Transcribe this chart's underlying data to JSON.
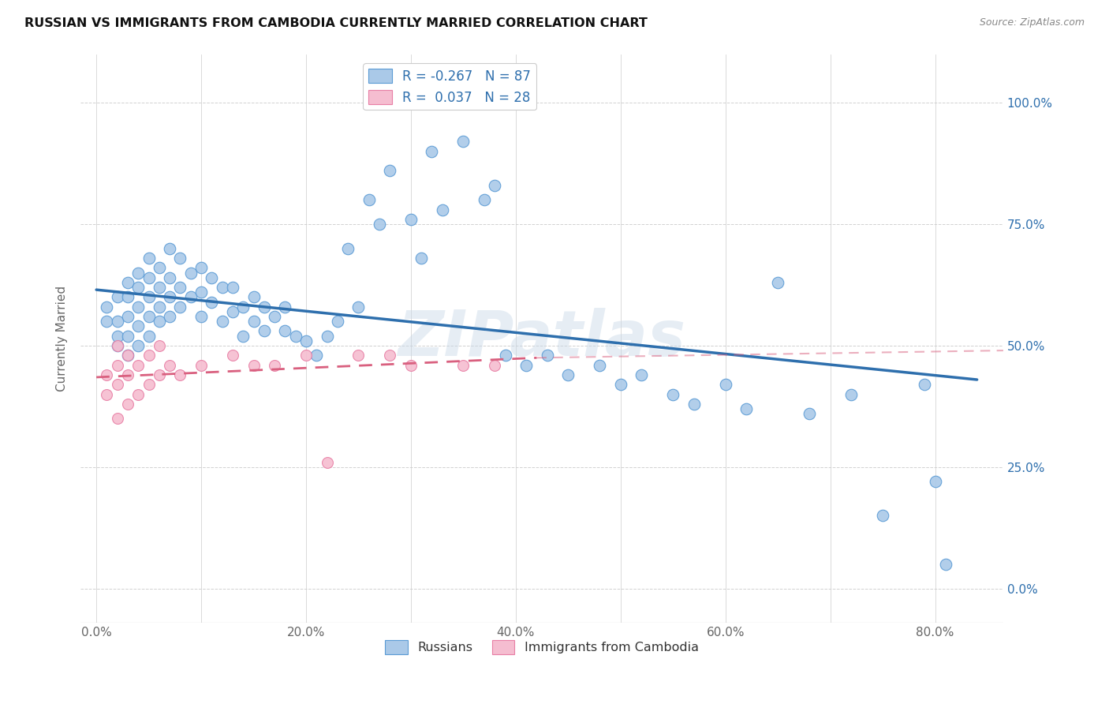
{
  "title": "RUSSIAN VS IMMIGRANTS FROM CAMBODIA CURRENTLY MARRIED CORRELATION CHART",
  "source": "Source: ZipAtlas.com",
  "ylabel": "Currently Married",
  "x_ticks": [
    "0.0%",
    "20.0%",
    "40.0%",
    "60.0%",
    "80.0%"
  ],
  "y_ticks": [
    "0.0%",
    "25.0%",
    "50.0%",
    "75.0%",
    "100.0%"
  ],
  "x_tick_vals": [
    0.0,
    0.2,
    0.4,
    0.6,
    0.8
  ],
  "y_tick_vals": [
    0.0,
    0.25,
    0.5,
    0.75,
    1.0
  ],
  "xlim": [
    -0.015,
    0.865
  ],
  "ylim": [
    -0.07,
    1.1
  ],
  "legend_r_blue": "-0.267",
  "legend_n_blue": "87",
  "legend_r_pink": "0.037",
  "legend_n_pink": "28",
  "blue_color": "#aac9e8",
  "blue_edge_color": "#5b9bd5",
  "blue_line_color": "#2e6fad",
  "pink_color": "#f5bdd0",
  "pink_edge_color": "#e87fa5",
  "pink_line_color": "#d9607f",
  "watermark": "ZIPatlas",
  "blue_scatter_x": [
    0.01,
    0.01,
    0.02,
    0.02,
    0.02,
    0.02,
    0.03,
    0.03,
    0.03,
    0.03,
    0.03,
    0.04,
    0.04,
    0.04,
    0.04,
    0.04,
    0.05,
    0.05,
    0.05,
    0.05,
    0.05,
    0.06,
    0.06,
    0.06,
    0.06,
    0.07,
    0.07,
    0.07,
    0.07,
    0.08,
    0.08,
    0.08,
    0.09,
    0.09,
    0.1,
    0.1,
    0.1,
    0.11,
    0.11,
    0.12,
    0.12,
    0.13,
    0.13,
    0.14,
    0.14,
    0.15,
    0.15,
    0.16,
    0.16,
    0.17,
    0.18,
    0.18,
    0.19,
    0.2,
    0.21,
    0.22,
    0.23,
    0.24,
    0.25,
    0.26,
    0.27,
    0.28,
    0.3,
    0.31,
    0.32,
    0.33,
    0.35,
    0.37,
    0.38,
    0.39,
    0.41,
    0.43,
    0.45,
    0.48,
    0.5,
    0.52,
    0.55,
    0.57,
    0.6,
    0.62,
    0.65,
    0.68,
    0.72,
    0.75,
    0.79,
    0.8,
    0.81
  ],
  "blue_scatter_y": [
    0.55,
    0.58,
    0.5,
    0.52,
    0.55,
    0.6,
    0.48,
    0.52,
    0.56,
    0.6,
    0.63,
    0.5,
    0.54,
    0.58,
    0.62,
    0.65,
    0.52,
    0.56,
    0.6,
    0.64,
    0.68,
    0.55,
    0.58,
    0.62,
    0.66,
    0.56,
    0.6,
    0.64,
    0.7,
    0.58,
    0.62,
    0.68,
    0.6,
    0.65,
    0.56,
    0.61,
    0.66,
    0.59,
    0.64,
    0.55,
    0.62,
    0.57,
    0.62,
    0.52,
    0.58,
    0.55,
    0.6,
    0.53,
    0.58,
    0.56,
    0.53,
    0.58,
    0.52,
    0.51,
    0.48,
    0.52,
    0.55,
    0.7,
    0.58,
    0.8,
    0.75,
    0.86,
    0.76,
    0.68,
    0.9,
    0.78,
    0.92,
    0.8,
    0.83,
    0.48,
    0.46,
    0.48,
    0.44,
    0.46,
    0.42,
    0.44,
    0.4,
    0.38,
    0.42,
    0.37,
    0.63,
    0.36,
    0.4,
    0.15,
    0.42,
    0.22,
    0.05
  ],
  "pink_scatter_x": [
    0.01,
    0.01,
    0.02,
    0.02,
    0.02,
    0.02,
    0.03,
    0.03,
    0.03,
    0.04,
    0.04,
    0.05,
    0.05,
    0.06,
    0.06,
    0.07,
    0.08,
    0.1,
    0.13,
    0.15,
    0.17,
    0.2,
    0.22,
    0.25,
    0.28,
    0.3,
    0.35,
    0.38
  ],
  "pink_scatter_y": [
    0.4,
    0.44,
    0.35,
    0.42,
    0.46,
    0.5,
    0.38,
    0.44,
    0.48,
    0.4,
    0.46,
    0.42,
    0.48,
    0.44,
    0.5,
    0.46,
    0.44,
    0.46,
    0.48,
    0.46,
    0.46,
    0.48,
    0.26,
    0.48,
    0.48,
    0.46,
    0.46,
    0.46
  ]
}
